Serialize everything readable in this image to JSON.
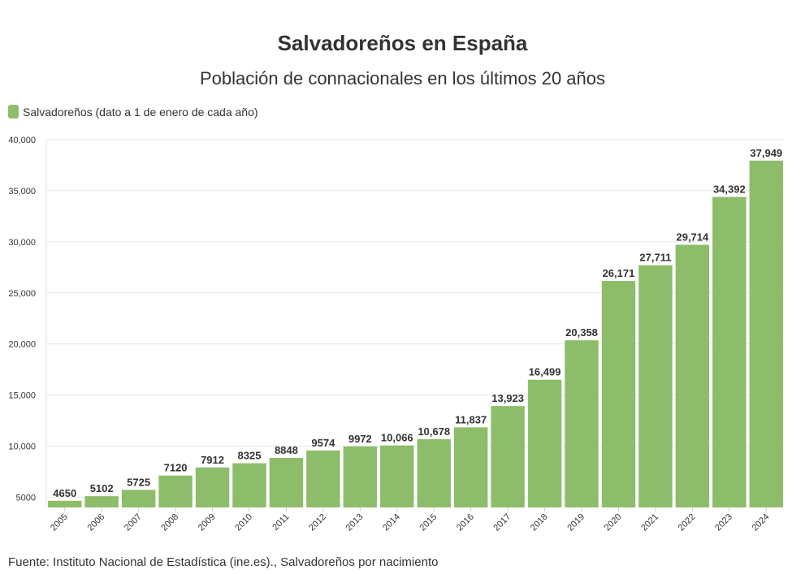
{
  "title": "Salvadoreños en España",
  "subtitle": "Población de connacionales en los últimos 20 años",
  "source": "Fuente: Instituto Nacional de Estadística (ine.es)., Salvadoreños por nacimiento",
  "colors": {
    "bar": "#8dbd6b",
    "grid": "#e6e6e6",
    "text": "#333333"
  },
  "chart_data": {
    "type": "bar",
    "categories": [
      "2005",
      "2006",
      "2007",
      "2008",
      "2009",
      "2010",
      "2011",
      "2012",
      "2013",
      "2014",
      "2015",
      "2016",
      "2017",
      "2018",
      "2019",
      "2020",
      "2021",
      "2022",
      "2023",
      "2024"
    ],
    "series": [
      {
        "name": "Salvadoreños (dato a 1 de enero de cada año)",
        "values": [
          4650,
          5102,
          5725,
          7120,
          7912,
          8325,
          8848,
          9574,
          9972,
          10066,
          10678,
          11837,
          13923,
          16499,
          20358,
          26171,
          27711,
          29714,
          34392,
          37949
        ],
        "labels": [
          "4650",
          "5102",
          "5725",
          "7120",
          "7912",
          "8325",
          "8848",
          "9574",
          "9972",
          "10,066",
          "10,678",
          "11,837",
          "13,923",
          "16,499",
          "20,358",
          "26,171",
          "27,711",
          "29,714",
          "34,392",
          "37,949"
        ]
      }
    ],
    "ylim": [
      4000,
      40000
    ],
    "yticks": [
      5000,
      10000,
      15000,
      20000,
      25000,
      30000,
      35000,
      40000
    ],
    "ytick_labels": [
      "5000",
      "10,000",
      "15,000",
      "20,000",
      "25,000",
      "30,000",
      "35,000",
      "40,000"
    ],
    "grid": true,
    "legend": "top-left"
  }
}
